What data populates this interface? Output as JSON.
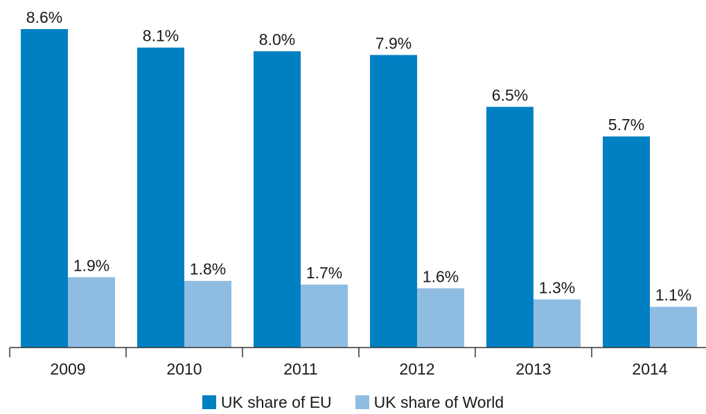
{
  "chart_data": {
    "type": "bar",
    "title": "",
    "xlabel": "",
    "ylabel": "",
    "categories": [
      "2009",
      "2010",
      "2011",
      "2012",
      "2013",
      "2014"
    ],
    "series": [
      {
        "name": "UK share of EU",
        "color": "#0080c3",
        "values": [
          8.6,
          8.1,
          8.0,
          7.9,
          6.5,
          5.7
        ],
        "labels": [
          "8.6%",
          "8.1%",
          "8.0%",
          "7.9%",
          "6.5%",
          "5.7%"
        ]
      },
      {
        "name": "UK share of World",
        "color": "#8fbde2",
        "values": [
          1.9,
          1.8,
          1.7,
          1.6,
          1.3,
          1.1
        ],
        "labels": [
          "1.9%",
          "1.8%",
          "1.7%",
          "1.6%",
          "1.3%",
          "1.1%"
        ]
      }
    ],
    "ylim": [
      0,
      8.6
    ],
    "grid": false,
    "legend_position": "bottom-center"
  }
}
